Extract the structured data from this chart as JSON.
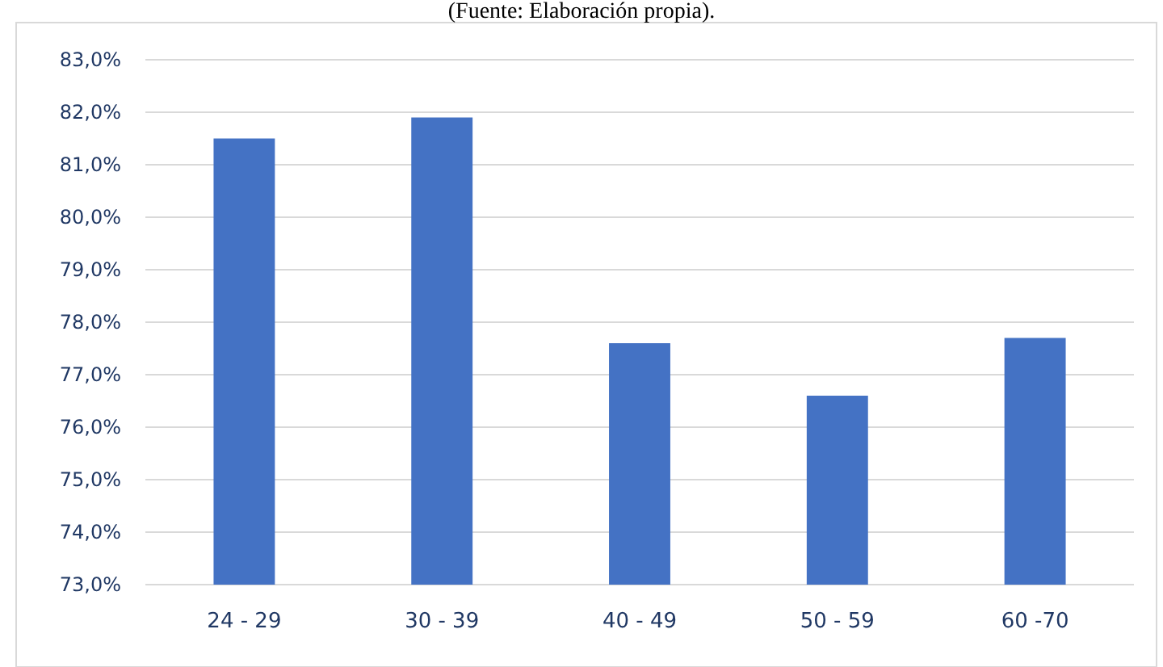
{
  "chart_data": {
    "type": "bar",
    "title": "(Fuente: Elaboración propia).",
    "categories": [
      "24 - 29",
      "30 - 39",
      "40 - 49",
      "50 - 59",
      "60 -70"
    ],
    "values": [
      81.5,
      81.9,
      77.6,
      76.6,
      77.7
    ],
    "color": "#4472c4",
    "ylim": [
      73,
      83
    ],
    "yticks": [
      {
        "value": 73,
        "label": "73,0%"
      },
      {
        "value": 74,
        "label": "74,0%"
      },
      {
        "value": 75,
        "label": "75,0%"
      },
      {
        "value": 76,
        "label": "76,0%"
      },
      {
        "value": 77,
        "label": "77,0%"
      },
      {
        "value": 78,
        "label": "78,0%"
      },
      {
        "value": 79,
        "label": "79,0%"
      },
      {
        "value": 80,
        "label": "80,0%"
      },
      {
        "value": 81,
        "label": "81,0%"
      },
      {
        "value": 82,
        "label": "82,0%"
      },
      {
        "value": 83,
        "label": "83,0%"
      }
    ],
    "grid": "y"
  }
}
